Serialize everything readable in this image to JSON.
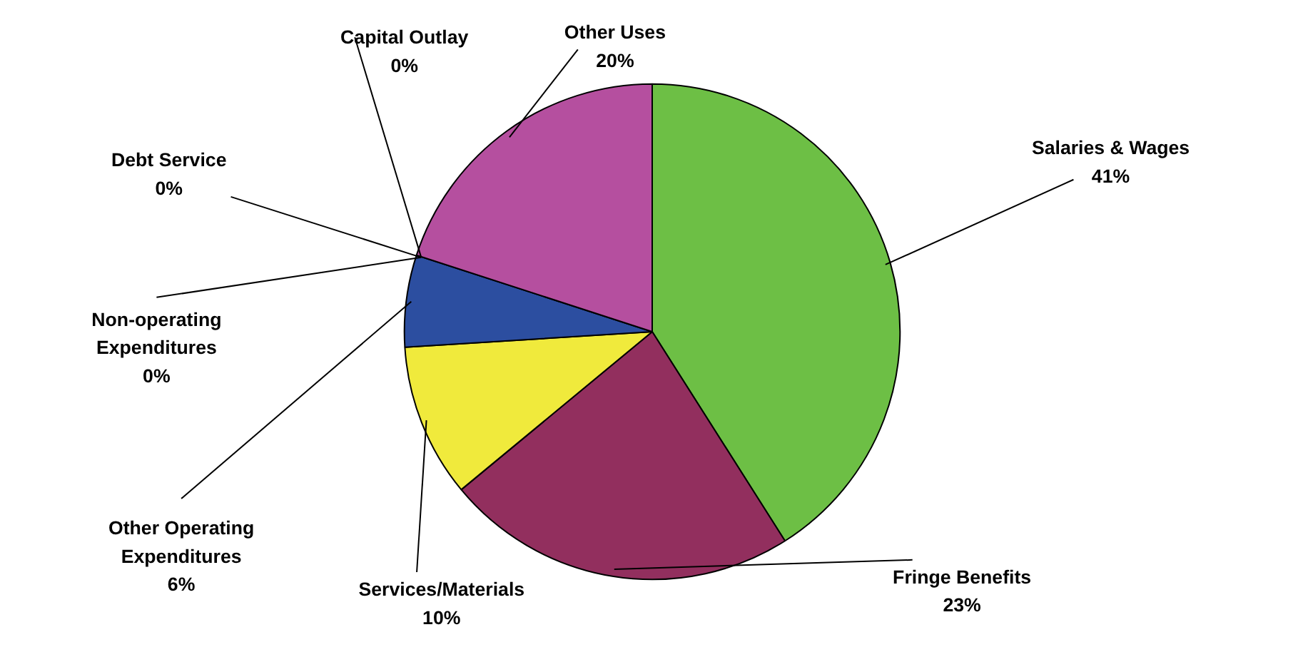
{
  "chart_data": {
    "type": "pie",
    "categories": [
      "Salaries & Wages",
      "Fringe Benefits",
      "Services/Materials",
      "Other Operating Expenditures",
      "Non-operating Expenditures",
      "Debt Service",
      "Capital Outlay",
      "Other Uses"
    ],
    "values": [
      41,
      23,
      10,
      6,
      0,
      0,
      0,
      20
    ],
    "colors": [
      "#6dbf45",
      "#922f5e",
      "#f0ea3c",
      "#2c4ea0",
      "#7f7f3a",
      "#4a8fd0",
      "#e08a2c",
      "#b54f9f"
    ],
    "value_labels": [
      "41%",
      "23%",
      "10%",
      "6%",
      "0%",
      "0%",
      "0%",
      "20%"
    ],
    "legend": false
  }
}
